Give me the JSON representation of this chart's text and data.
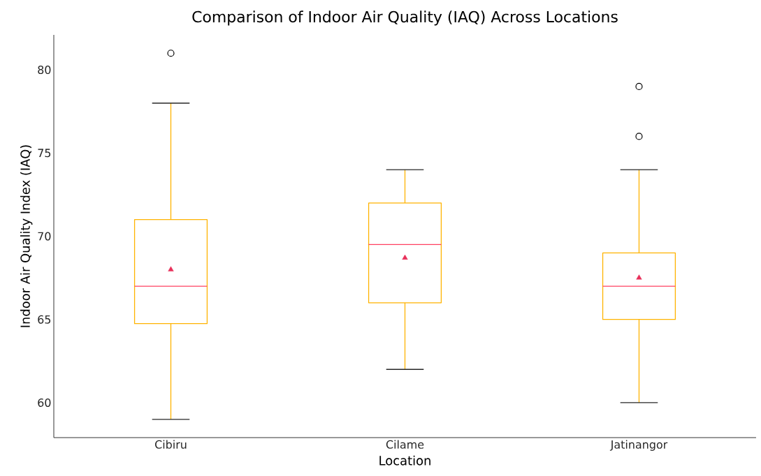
{
  "chart_data": {
    "type": "box",
    "title": "Comparison of Indoor Air Quality (IAQ) Across Locations",
    "xlabel": "Location",
    "ylabel": "Indoor Air Quality Index (IAQ)",
    "categories": [
      "Cibiru",
      "Cilame",
      "Jatinangor"
    ],
    "boxes": [
      {
        "low": 59,
        "q1": 64.75,
        "median": 67,
        "q3": 71,
        "high": 78,
        "mean": 68,
        "outliers": [
          81
        ]
      },
      {
        "low": 62,
        "q1": 66,
        "median": 69.5,
        "q3": 72,
        "high": 74,
        "mean": 68.7
      },
      {
        "low": 60,
        "q1": 65,
        "median": 67,
        "q3": 69,
        "high": 74,
        "mean": 67.5,
        "outliers": [
          76,
          79
        ]
      }
    ],
    "ylim": [
      57.9,
      82.1
    ],
    "yticks": [
      60,
      65,
      70,
      75,
      80
    ],
    "grid": false
  }
}
